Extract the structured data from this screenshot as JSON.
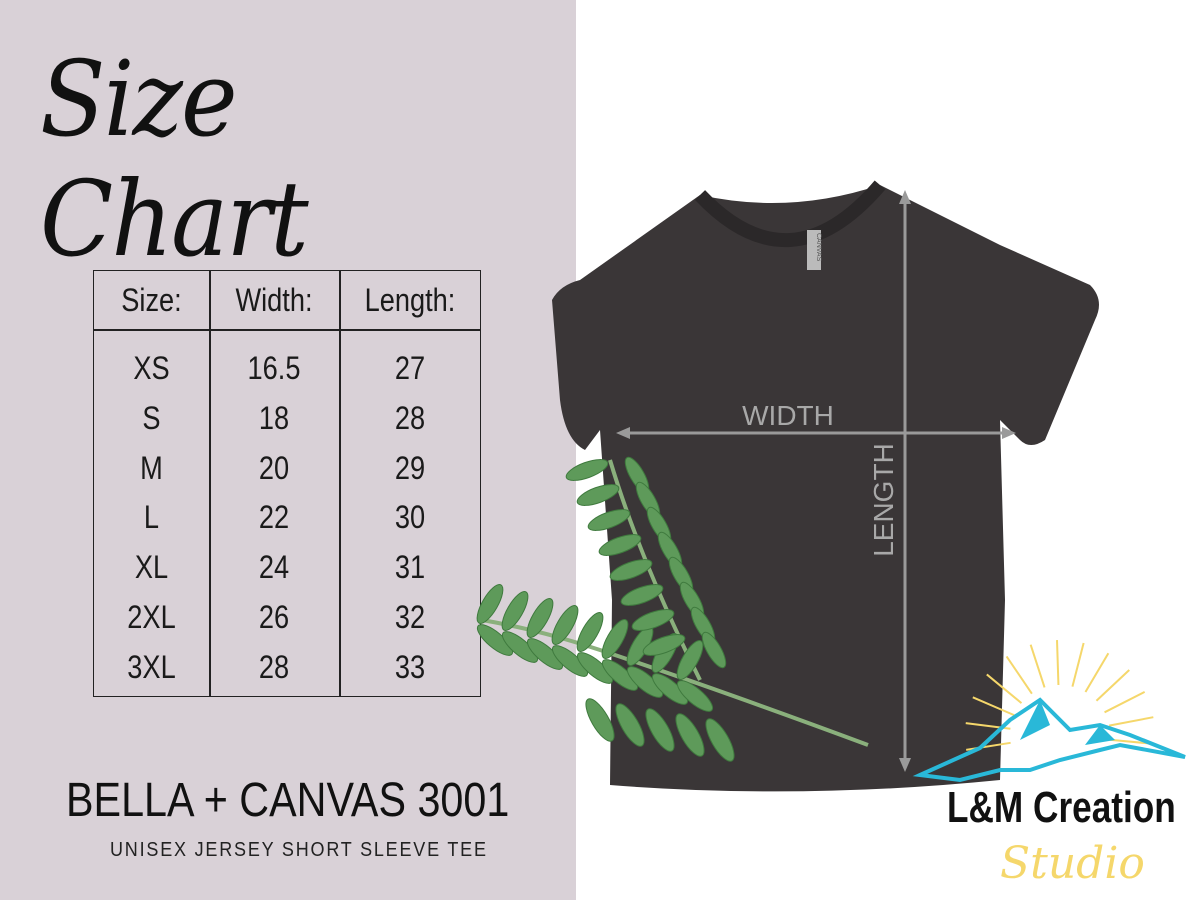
{
  "title": "Size Chart",
  "table": {
    "headers": [
      "Size:",
      "Width:",
      "Length:"
    ],
    "rows": [
      [
        "XS",
        "16.5",
        "27"
      ],
      [
        "S",
        "18",
        "28"
      ],
      [
        "M",
        "20",
        "29"
      ],
      [
        "L",
        "22",
        "30"
      ],
      [
        "XL",
        "24",
        "31"
      ],
      [
        "2XL",
        "26",
        "32"
      ],
      [
        "3XL",
        "28",
        "33"
      ]
    ]
  },
  "product": {
    "name": "BELLA + CANVAS 3001",
    "description": "UNISEX JERSEY SHORT SLEEVE TEE"
  },
  "diagram": {
    "width_label": "WIDTH",
    "length_label": "LENGTH",
    "tag_text": "CANVAS",
    "shirt_color": "#3a3637",
    "arrow_color": "#9a9a9a"
  },
  "logo": {
    "name": "L&M Creation",
    "script": "Studio",
    "mountain_color": "#29b8d8",
    "sun_color": "#f5d76b"
  },
  "colors": {
    "panel_background": "#d9d1d7"
  }
}
